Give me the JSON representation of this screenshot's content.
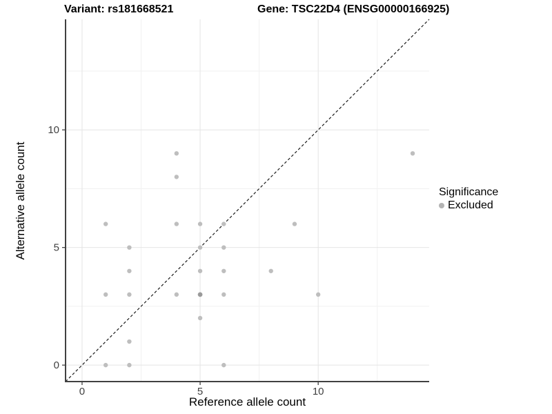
{
  "chart_data": {
    "type": "scatter",
    "titles": {
      "left": "Variant: rs181668521",
      "right": "Gene: TSC22D4 (ENSG00000166925)"
    },
    "xlabel": "Reference allele count",
    "ylabel": "Alternative allele count",
    "xlim": [
      -0.7,
      14.7
    ],
    "ylim": [
      -0.7,
      14.7
    ],
    "x_major_ticks": [
      0,
      5,
      10
    ],
    "y_major_ticks": [
      0,
      5,
      10
    ],
    "x_minor_ticks": [
      2.5,
      7.5,
      12.5
    ],
    "y_minor_ticks": [
      2.5,
      7.5,
      12.5
    ],
    "grid": true,
    "legend_position": "right",
    "identity_line": {
      "kind": "y-equals-x",
      "style": "dashed",
      "color": "#1a1a1a"
    },
    "series": [
      {
        "name": "Excluded",
        "color": "#bebebe",
        "points": [
          [
            1,
            0
          ],
          [
            2,
            0
          ],
          [
            6,
            0
          ],
          [
            2,
            1
          ],
          [
            5,
            2
          ],
          [
            1,
            3
          ],
          [
            2,
            3
          ],
          [
            4,
            3
          ],
          [
            6,
            3
          ],
          [
            10,
            3
          ],
          [
            2,
            4
          ],
          [
            5,
            4
          ],
          [
            6,
            4
          ],
          [
            8,
            4
          ],
          [
            2,
            5
          ],
          [
            5,
            5
          ],
          [
            6,
            5
          ],
          [
            1,
            6
          ],
          [
            4,
            6
          ],
          [
            5,
            6
          ],
          [
            6,
            6
          ],
          [
            9,
            6
          ],
          [
            4,
            8
          ],
          [
            4,
            9
          ],
          [
            14,
            9
          ]
        ]
      }
    ],
    "overplotted_points": {
      "color": "#9a9a9a",
      "points": [
        [
          5,
          3
        ]
      ]
    },
    "legend": {
      "title": "Significance",
      "items": [
        {
          "label": "Excluded",
          "color": "#b3b3b3"
        }
      ]
    },
    "colors": {
      "grid_major": "#e4e4e4",
      "grid_minor": "#f1f1f1",
      "axis_line": "#404040",
      "tick_label": "#404040",
      "background": "#ffffff"
    }
  }
}
